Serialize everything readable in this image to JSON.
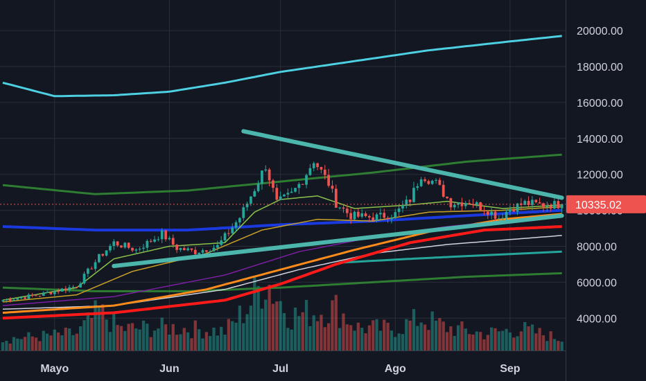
{
  "chart_data": {
    "type": "candlestick",
    "title": "",
    "ylim": [
      2200,
      21700
    ],
    "grid": true,
    "y_ticks": [
      {
        "value": 20000,
        "label": "20000.00"
      },
      {
        "value": 18000,
        "label": "18000.00"
      },
      {
        "value": 16000,
        "label": "16000.00"
      },
      {
        "value": 14000,
        "label": "14000.00"
      },
      {
        "value": 12000,
        "label": "12000.00"
      },
      {
        "value": 10000,
        "label": "10000.00"
      },
      {
        "value": 8000,
        "label": "8000.00"
      },
      {
        "value": 6000,
        "label": "6000.00"
      },
      {
        "value": 4000,
        "label": "4000.00"
      }
    ],
    "x_ticks": [
      {
        "day": 14,
        "label": "Mayo"
      },
      {
        "day": 45,
        "label": "Jun"
      },
      {
        "day": 75,
        "label": "Jul"
      },
      {
        "day": 106,
        "label": "Ago"
      },
      {
        "day": 137,
        "label": "Sep"
      }
    ],
    "day_count": 152,
    "last_price": {
      "value": 10335.02,
      "label": "10335.02",
      "color": "#ef5350"
    },
    "candles_anchors": [
      [
        0,
        5000
      ],
      [
        10,
        5300
      ],
      [
        20,
        5800
      ],
      [
        26,
        7400
      ],
      [
        30,
        8200
      ],
      [
        36,
        7800
      ],
      [
        43,
        8700
      ],
      [
        47,
        7900
      ],
      [
        52,
        7700
      ],
      [
        58,
        8000
      ],
      [
        64,
        9600
      ],
      [
        68,
        11200
      ],
      [
        71,
        12500
      ],
      [
        72,
        11800
      ],
      [
        74,
        10400
      ],
      [
        78,
        10900
      ],
      [
        81,
        11700
      ],
      [
        84,
        12800
      ],
      [
        88,
        11500
      ],
      [
        90,
        10400
      ],
      [
        94,
        9700
      ],
      [
        100,
        9600
      ],
      [
        106,
        9800
      ],
      [
        110,
        10600
      ],
      [
        113,
        12000
      ],
      [
        117,
        11500
      ],
      [
        121,
        10400
      ],
      [
        126,
        10500
      ],
      [
        131,
        10000
      ],
      [
        134,
        9600
      ],
      [
        137,
        10100
      ],
      [
        141,
        10400
      ],
      [
        146,
        10300
      ],
      [
        151,
        10335
      ]
    ],
    "volume_anchors": [
      [
        0,
        0.15
      ],
      [
        20,
        0.22
      ],
      [
        26,
        0.5
      ],
      [
        32,
        0.28
      ],
      [
        45,
        0.3
      ],
      [
        60,
        0.25
      ],
      [
        66,
        0.55
      ],
      [
        71,
        0.95
      ],
      [
        74,
        0.7
      ],
      [
        78,
        0.45
      ],
      [
        84,
        0.5
      ],
      [
        90,
        0.55
      ],
      [
        96,
        0.3
      ],
      [
        106,
        0.28
      ],
      [
        113,
        0.42
      ],
      [
        120,
        0.3
      ],
      [
        130,
        0.22
      ],
      [
        140,
        0.28
      ],
      [
        151,
        0.15
      ]
    ],
    "series": [
      {
        "name": "MA cyan",
        "color": "#4dd0e1",
        "width": 3,
        "points": [
          [
            0,
            17100
          ],
          [
            14,
            16350
          ],
          [
            30,
            16400
          ],
          [
            45,
            16600
          ],
          [
            60,
            17100
          ],
          [
            75,
            17700
          ],
          [
            95,
            18300
          ],
          [
            115,
            18900
          ],
          [
            135,
            19350
          ],
          [
            151,
            19700
          ]
        ]
      },
      {
        "name": "MA green upper",
        "color": "#2e7d32",
        "width": 3,
        "points": [
          [
            0,
            11400
          ],
          [
            25,
            10900
          ],
          [
            50,
            11100
          ],
          [
            75,
            11600
          ],
          [
            100,
            12100
          ],
          [
            125,
            12700
          ],
          [
            151,
            13100
          ]
        ]
      },
      {
        "name": "MA blue",
        "color": "#1a3ae0",
        "width": 4,
        "points": [
          [
            0,
            9100
          ],
          [
            25,
            8900
          ],
          [
            50,
            8900
          ],
          [
            75,
            9200
          ],
          [
            100,
            9400
          ],
          [
            125,
            9700
          ],
          [
            151,
            10000
          ]
        ]
      },
      {
        "name": "MA green lower",
        "color": "#2e7d32",
        "width": 3,
        "points": [
          [
            0,
            5700
          ],
          [
            25,
            5500
          ],
          [
            50,
            5500
          ],
          [
            75,
            5700
          ],
          [
            100,
            6000
          ],
          [
            125,
            6300
          ],
          [
            151,
            6500
          ]
        ]
      },
      {
        "name": "MA teal",
        "color": "#26a69a",
        "width": 3,
        "points": [
          [
            92,
            7100
          ],
          [
            110,
            7300
          ],
          [
            130,
            7500
          ],
          [
            151,
            7700
          ]
        ]
      },
      {
        "name": "MA white",
        "color": "#d1d4dc",
        "width": 1.5,
        "points": [
          [
            0,
            4500
          ],
          [
            30,
            4700
          ],
          [
            60,
            5600
          ],
          [
            80,
            6700
          ],
          [
            100,
            7600
          ],
          [
            120,
            8100
          ],
          [
            151,
            8600
          ]
        ]
      },
      {
        "name": "MA red",
        "color": "#ff1a1a",
        "width": 4,
        "points": [
          [
            0,
            4000
          ],
          [
            30,
            4300
          ],
          [
            60,
            5000
          ],
          [
            75,
            5900
          ],
          [
            90,
            7000
          ],
          [
            110,
            8200
          ],
          [
            130,
            8900
          ],
          [
            151,
            9100
          ]
        ]
      },
      {
        "name": "MA orange",
        "color": "#ff8c1a",
        "width": 3,
        "points": [
          [
            0,
            4300
          ],
          [
            30,
            4700
          ],
          [
            55,
            5600
          ],
          [
            75,
            6700
          ],
          [
            95,
            7800
          ],
          [
            115,
            8800
          ],
          [
            135,
            9500
          ],
          [
            151,
            9800
          ]
        ]
      },
      {
        "name": "MA purple",
        "color": "#7b1fa2",
        "width": 1.5,
        "points": [
          [
            0,
            4700
          ],
          [
            30,
            5200
          ],
          [
            60,
            6400
          ],
          [
            80,
            7700
          ],
          [
            100,
            8500
          ],
          [
            120,
            9100
          ],
          [
            151,
            9700
          ]
        ]
      },
      {
        "name": "MA yellow",
        "color": "#c9a227",
        "width": 1.5,
        "points": [
          [
            0,
            4900
          ],
          [
            20,
            5300
          ],
          [
            35,
            6600
          ],
          [
            55,
            7600
          ],
          [
            70,
            8900
          ],
          [
            85,
            9500
          ],
          [
            100,
            9400
          ],
          [
            115,
            9900
          ],
          [
            135,
            10000
          ],
          [
            151,
            10200
          ]
        ]
      },
      {
        "name": "MA light green",
        "color": "#8bc34a",
        "width": 1.5,
        "points": [
          [
            0,
            5000
          ],
          [
            20,
            5700
          ],
          [
            30,
            7300
          ],
          [
            45,
            8000
          ],
          [
            60,
            8200
          ],
          [
            68,
            9900
          ],
          [
            75,
            10600
          ],
          [
            85,
            10800
          ],
          [
            95,
            10100
          ],
          [
            110,
            10300
          ],
          [
            120,
            10500
          ],
          [
            135,
            10100
          ],
          [
            151,
            10300
          ]
        ]
      }
    ],
    "trendlines": [
      {
        "name": "descending resistance",
        "color": "#4db6ac",
        "points": [
          [
            65,
            14400
          ],
          [
            151,
            10700
          ]
        ]
      },
      {
        "name": "ascending support",
        "color": "#4db6ac",
        "points": [
          [
            30,
            6900
          ],
          [
            151,
            9700
          ]
        ]
      }
    ]
  }
}
